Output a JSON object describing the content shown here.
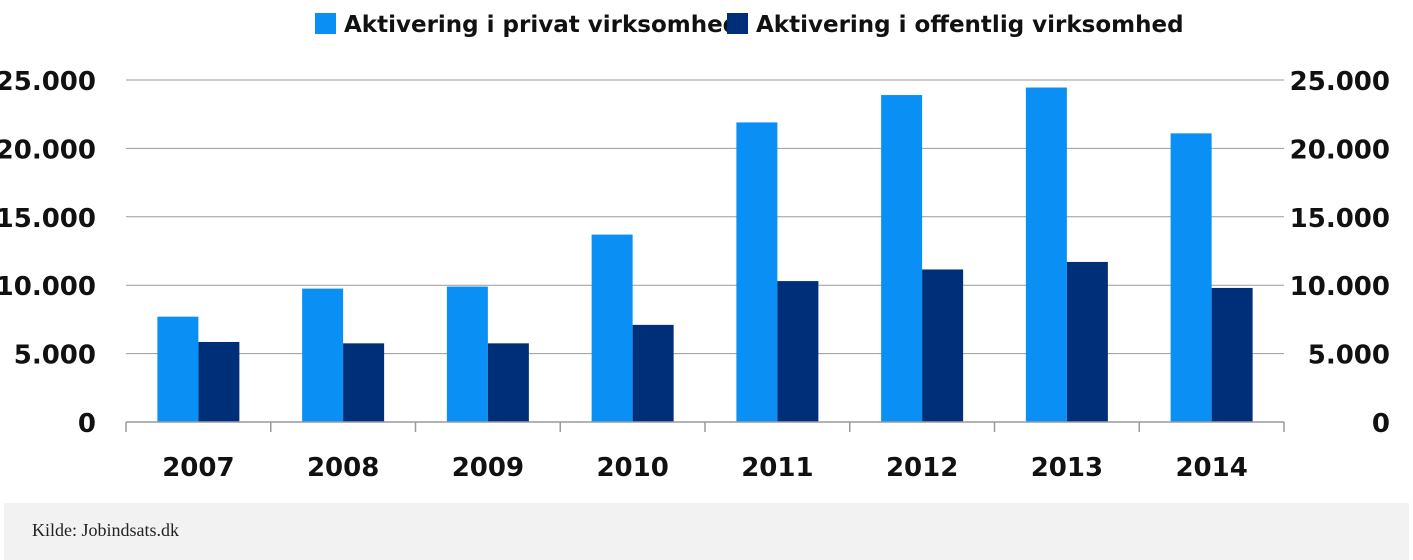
{
  "chart_data": {
    "type": "bar",
    "categories": [
      "2007",
      "2008",
      "2009",
      "2010",
      "2011",
      "2012",
      "2013",
      "2014"
    ],
    "series": [
      {
        "name": "Aktivering i privat virksomhed",
        "color": "#0a90f5",
        "values": [
          7700,
          9750,
          9900,
          13700,
          21900,
          23900,
          24450,
          21100
        ]
      },
      {
        "name": "Aktivering i offentlig virksomhed",
        "color": "#002f7a",
        "values": [
          5850,
          5750,
          5750,
          7100,
          10300,
          11150,
          11700,
          9800
        ]
      }
    ],
    "ylim": [
      0,
      25000
    ],
    "yticks": [
      "0",
      "5.000",
      "10.000",
      "15.000",
      "20.000",
      "25.000"
    ],
    "ytick_values": [
      0,
      5000,
      10000,
      15000,
      20000,
      25000
    ],
    "grid": true,
    "legend": "top-center",
    "dual_axis": true
  },
  "source": "Kilde: Jobindsats.dk"
}
